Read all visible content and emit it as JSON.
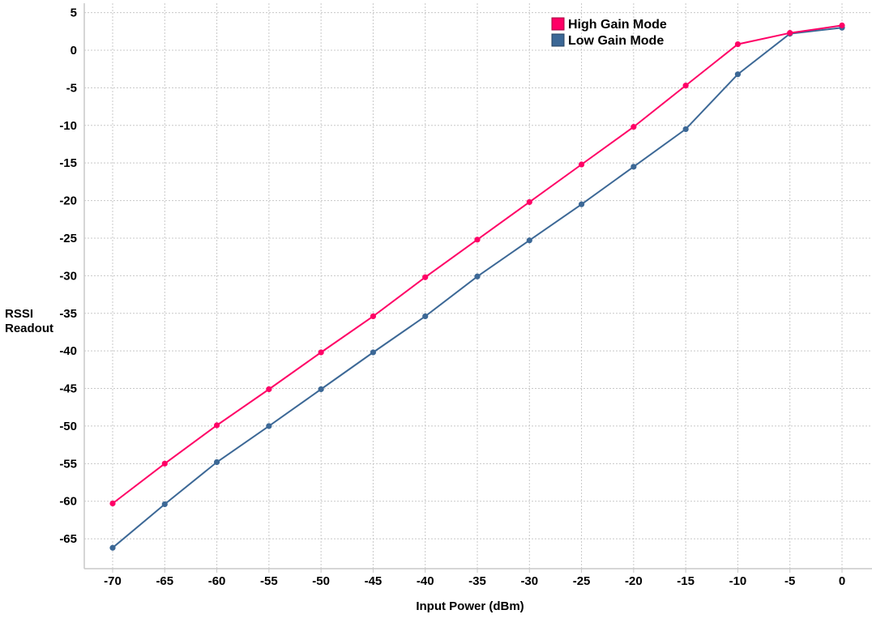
{
  "chart_data": {
    "type": "line",
    "title": "",
    "xlabel": "Input Power (dBm)",
    "ylabel": "RSSI Readout",
    "xlim": [
      -72.7,
      2.8
    ],
    "ylim": [
      -69.5,
      6
    ],
    "x_ticks": [
      -70,
      -65,
      -60,
      -55,
      -50,
      -45,
      -40,
      -35,
      -30,
      -25,
      -20,
      -15,
      -10,
      -5,
      0
    ],
    "y_ticks": [
      5,
      0,
      -5,
      -10,
      -15,
      -20,
      -25,
      -30,
      -35,
      -40,
      -45,
      -50,
      -55,
      -60,
      -65
    ],
    "grid": true,
    "legend_position": "top-right",
    "x": [
      -70,
      -65,
      -60,
      -55,
      -50,
      -45,
      -40,
      -35,
      -30,
      -25,
      -20,
      -15,
      -10,
      -5,
      0
    ],
    "series": [
      {
        "name": "High Gain Mode",
        "color": "#ff0066",
        "values": [
          -60.3,
          -55.0,
          -49.9,
          -45.1,
          -40.2,
          -35.4,
          -30.2,
          -25.2,
          -20.2,
          -15.2,
          -10.2,
          -4.7,
          0.8,
          2.3,
          3.3
        ]
      },
      {
        "name": "Low Gain Mode",
        "color": "#3c6896",
        "values": [
          -66.2,
          -60.4,
          -54.8,
          -50.0,
          -45.1,
          -40.2,
          -35.4,
          -30.1,
          -25.3,
          -20.5,
          -15.5,
          -10.5,
          -3.2,
          2.2,
          3.0
        ]
      }
    ]
  },
  "labels": {
    "ylabel_line1": "RSSI",
    "ylabel_line2": "Readout",
    "xlabel": "Input Power (dBm)",
    "legend": [
      "High Gain Mode",
      "Low Gain Mode"
    ]
  }
}
